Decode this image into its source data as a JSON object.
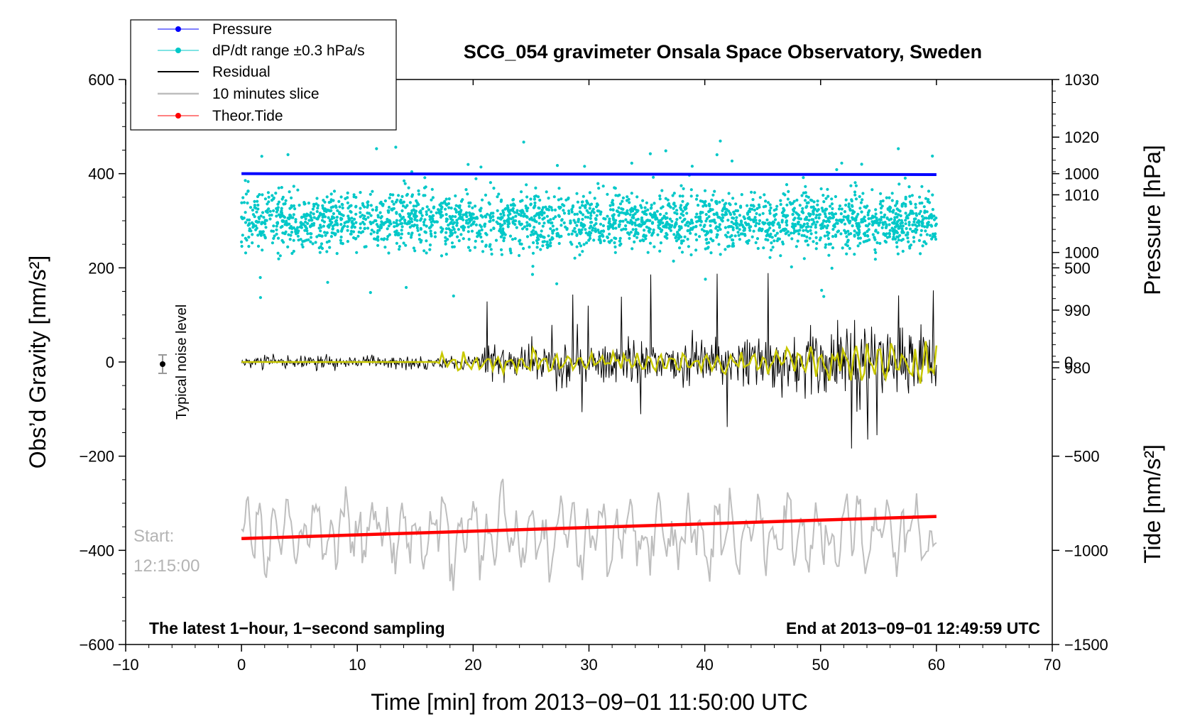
{
  "chart_data": {
    "type": "line",
    "title": "SCG_054 gravimeter Onsala Space Observatory, Sweden",
    "xlabel": "Time [min] from 2013−09−01 11:50:00 UTC",
    "ylabel_left": "Obs’d Gravity [nm/s²]",
    "ylabel_right_pressure": "Pressure [hPa]",
    "ylabel_right_tide": "Tide [nm/s²]",
    "xlim": [
      -10,
      70
    ],
    "ylim": [
      -600,
      600
    ],
    "x_ticks": [
      -10,
      0,
      10,
      20,
      30,
      40,
      50,
      60,
      70
    ],
    "x_tick_labels": [
      "−10",
      "0",
      "10",
      "20",
      "30",
      "40",
      "50",
      "60",
      "70"
    ],
    "y_ticks": [
      -600,
      -400,
      -200,
      0,
      200,
      400,
      600
    ],
    "y_tick_labels": [
      "−600",
      "−400",
      "−200",
      "0",
      "200",
      "400",
      "600"
    ],
    "pressure_axis": {
      "ticks": [
        980,
        990,
        1000,
        1010,
        1020,
        1030
      ],
      "tick_labels": [
        "980",
        "990",
        "1000",
        "1010",
        "1020",
        "1030"
      ],
      "ylim": [
        932,
        1030
      ]
    },
    "tide_axis": {
      "ticks": [
        -1500,
        -1000,
        -500,
        0,
        500,
        1000
      ],
      "tick_labels": [
        "−1500",
        "−1000",
        "−500",
        "0",
        "500",
        "1000"
      ],
      "ylim": [
        -1500,
        1500
      ]
    },
    "legend": [
      {
        "label": "Pressure",
        "color": "#0000ff",
        "marker": true
      },
      {
        "label": "dP/dt range ±0.3 hPa/s",
        "color": "#00c8c8",
        "marker": true
      },
      {
        "label": "Residual",
        "color": "#000000",
        "marker": false
      },
      {
        "label": "10 minutes slice",
        "color": "#bebebe",
        "marker": false
      },
      {
        "label": "Theor.Tide",
        "color": "#ff0000",
        "marker": true
      }
    ],
    "legend_position": "top-left",
    "series": [
      {
        "name": "Pressure",
        "color": "#0000ff",
        "axis": "left",
        "x": [
          0,
          60
        ],
        "y": [
          400,
          398
        ]
      },
      {
        "name": "Theor.Tide",
        "color": "#ff0000",
        "axis": "left",
        "x": [
          0,
          60
        ],
        "y": [
          -375,
          -328
        ]
      },
      {
        "name": "dP/dt range ±0.3 hPa/s",
        "color": "#00c8c8",
        "axis": "left",
        "x_range": [
          0,
          60
        ],
        "center": 300,
        "spread": 55
      },
      {
        "name": "Residual",
        "color": "#000000",
        "axis": "left",
        "x_range": [
          0,
          60
        ],
        "center": 0
      },
      {
        "name": "10 minutes slice",
        "color": "#bebebe",
        "axis": "left",
        "x_range": [
          0,
          60
        ],
        "center": -375
      }
    ],
    "smoothed_residual_color": "#c8c800",
    "noise_marker": {
      "x": -7,
      "y": 0,
      "label": "Typical noise level"
    },
    "start_label": [
      "Start:",
      "12:15:00"
    ],
    "footer_left": "The latest 1−hour, 1−second sampling",
    "footer_right": "End at 2013−09−01 12:49:59 UTC"
  }
}
